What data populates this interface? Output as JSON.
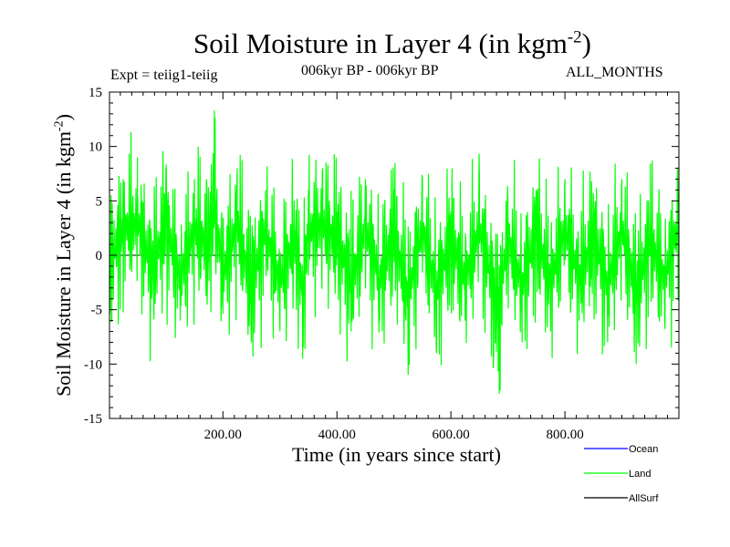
{
  "chart_data": {
    "type": "line",
    "title_main": "Soil Moisture in Layer 4 (in kgm",
    "title_exp": "-2",
    "title_close": ")",
    "expt_label": "Expt = teiig1-teiig",
    "period_label": "006kyr BP - 006kyr BP",
    "months_label": "ALL_MONTHS",
    "ylabel_main": "Soil Moisture in Layer 4 (in kgm",
    "ylabel_exp": "-2",
    "ylabel_close": ")",
    "xlabel": "Time (in years since start)",
    "xlim": [
      1,
      1000
    ],
    "ylim": [
      -15,
      15
    ],
    "x_ticks": [
      200,
      400,
      600,
      800
    ],
    "x_tick_labels": [
      "200.00",
      "400.00",
      "600.00",
      "800.00"
    ],
    "y_ticks": [
      -15,
      -10,
      -5,
      0,
      5,
      10,
      15
    ],
    "y_tick_labels": [
      "-15",
      "-10",
      "-5",
      "0",
      "5",
      "10",
      "15"
    ],
    "grid": false,
    "legend_position": "bottom-right, outside",
    "series": [
      {
        "name": "Ocean",
        "color": "#0000ff",
        "values": []
      },
      {
        "name": "Land",
        "color": "#00ff00",
        "x": [
          1,
          25,
          50,
          75,
          100,
          125,
          150,
          175,
          185,
          200,
          225,
          250,
          275,
          300,
          325,
          340,
          350,
          375,
          400,
          425,
          450,
          475,
          500,
          525,
          550,
          575,
          600,
          625,
          650,
          675,
          685,
          700,
          725,
          750,
          775,
          800,
          825,
          850,
          875,
          900,
          925,
          950,
          975,
          1000
        ],
        "values": [
          -3,
          7,
          9,
          -4,
          8,
          -6,
          7,
          3,
          13.3,
          -5,
          8,
          -8,
          6,
          -7,
          5,
          -9.5,
          6,
          8,
          4,
          -7,
          7,
          -6,
          6,
          -11,
          7,
          -9,
          4,
          -6,
          7,
          -9,
          -12.7,
          5,
          -8,
          6,
          -7,
          7,
          -6,
          5,
          -8,
          7,
          -10,
          4,
          -6,
          8
        ]
      },
      {
        "name": "AllSurf",
        "color": "#000000",
        "values": []
      }
    ]
  }
}
